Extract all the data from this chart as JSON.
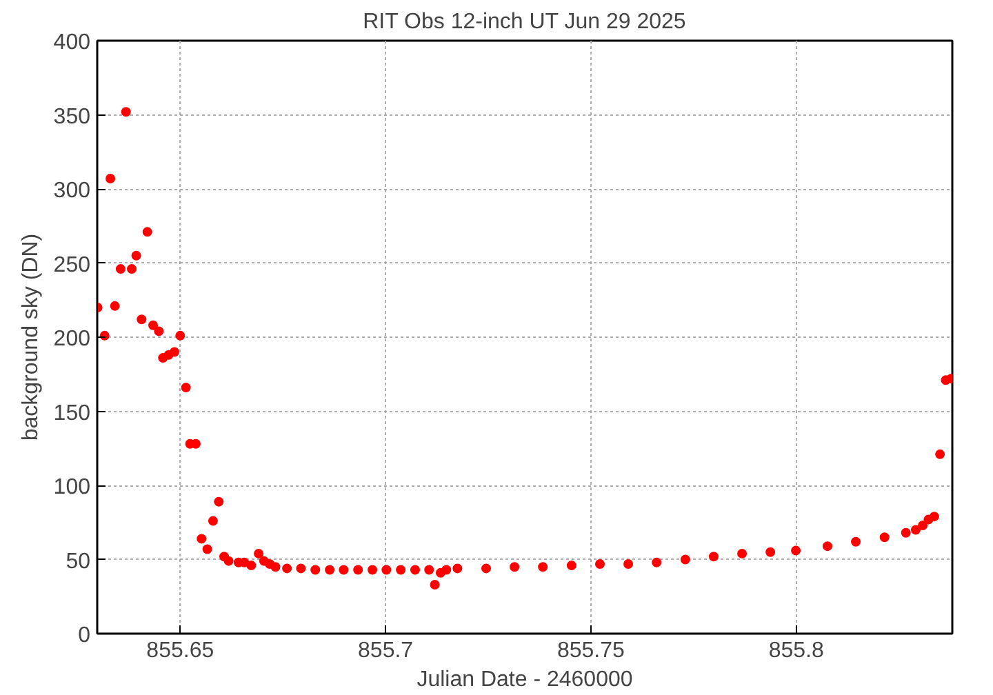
{
  "chart_data": {
    "type": "scatter",
    "title": "RIT Obs 12-inch UT Jun 29 2025",
    "xlabel": "Julian Date - 2460000",
    "ylabel": "background sky (DN)",
    "xlim": [
      855.6298,
      855.838
    ],
    "xticks": [
      855.65,
      855.7,
      855.75,
      855.8
    ],
    "ylim": [
      0,
      400
    ],
    "yticks": [
      0,
      50,
      100,
      150,
      200,
      250,
      300,
      350,
      400
    ],
    "grid": true,
    "marker": "circle",
    "series": [
      {
        "color": "#ff0000",
        "x": [
          855.6299,
          855.6316,
          855.633,
          855.6341,
          855.6355,
          855.6368,
          855.6382,
          855.6393,
          855.6406,
          855.642,
          855.6434,
          855.6448,
          855.6458,
          855.6472,
          855.6486,
          855.65,
          855.6514,
          855.6524,
          855.6538,
          855.6552,
          855.6566,
          855.658,
          855.6594,
          855.6607,
          855.6618,
          855.6642,
          855.6656,
          855.6673,
          855.6691,
          855.6704,
          855.6718,
          855.6732,
          855.676,
          855.6794,
          855.6829,
          855.6864,
          855.6898,
          855.6933,
          855.6968,
          855.7002,
          855.7037,
          855.7072,
          855.7106,
          855.712,
          855.7134,
          855.7148,
          855.7175,
          855.7245,
          855.7314,
          855.7383,
          855.7453,
          855.7522,
          855.7591,
          855.766,
          855.773,
          855.7799,
          855.7868,
          855.7937,
          855.7999,
          855.8076,
          855.8145,
          855.8215,
          855.8267,
          855.8291,
          855.8308,
          855.8322,
          855.8336,
          855.835,
          855.8364,
          855.8377
        ],
        "values": [
          220,
          201,
          307,
          221,
          246,
          352,
          246,
          255,
          212,
          271,
          208,
          204,
          186,
          188,
          190,
          201,
          166,
          128,
          128,
          64,
          57,
          76,
          89,
          52,
          49,
          48,
          48,
          46,
          54,
          49,
          47,
          45,
          44,
          44,
          43,
          43,
          43,
          43,
          43,
          43,
          43,
          43,
          43,
          33,
          41,
          43,
          44,
          44,
          45,
          45,
          46,
          47,
          47,
          48,
          50,
          52,
          54,
          55,
          56,
          59,
          62,
          65,
          68,
          70,
          73,
          77,
          79,
          121,
          171,
          172
        ]
      }
    ]
  }
}
